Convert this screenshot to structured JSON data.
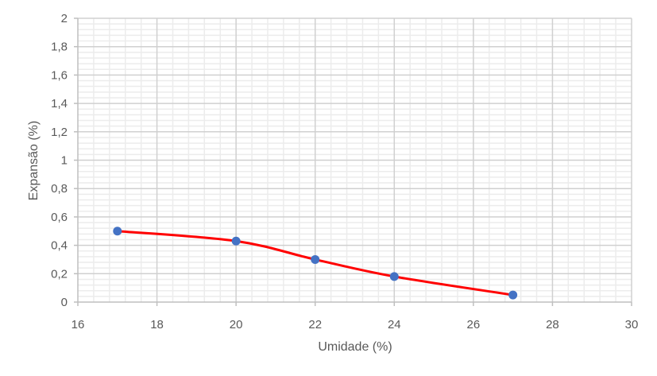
{
  "chart_data": {
    "type": "scatter",
    "title": "",
    "xlabel": "Umidade (%)",
    "ylabel": "Expansão (%)",
    "xlim": [
      16,
      30
    ],
    "ylim": [
      0,
      2
    ],
    "x_ticks": [
      "16",
      "18",
      "20",
      "22",
      "24",
      "26",
      "28",
      "30"
    ],
    "y_ticks": [
      "0",
      "0,2",
      "0,4",
      "0,6",
      "0,8",
      "1",
      "1,2",
      "1,4",
      "1,6",
      "1,8",
      "2"
    ],
    "grid": {
      "major": true,
      "minor": true
    },
    "legend": null,
    "series": [
      {
        "name": "Expansão",
        "line": "smooth",
        "line_color": "#ff0000",
        "marker_color": "#4472c4",
        "x": [
          17,
          20,
          22,
          24,
          27
        ],
        "y": [
          0.5,
          0.43,
          0.3,
          0.18,
          0.05
        ]
      }
    ]
  }
}
